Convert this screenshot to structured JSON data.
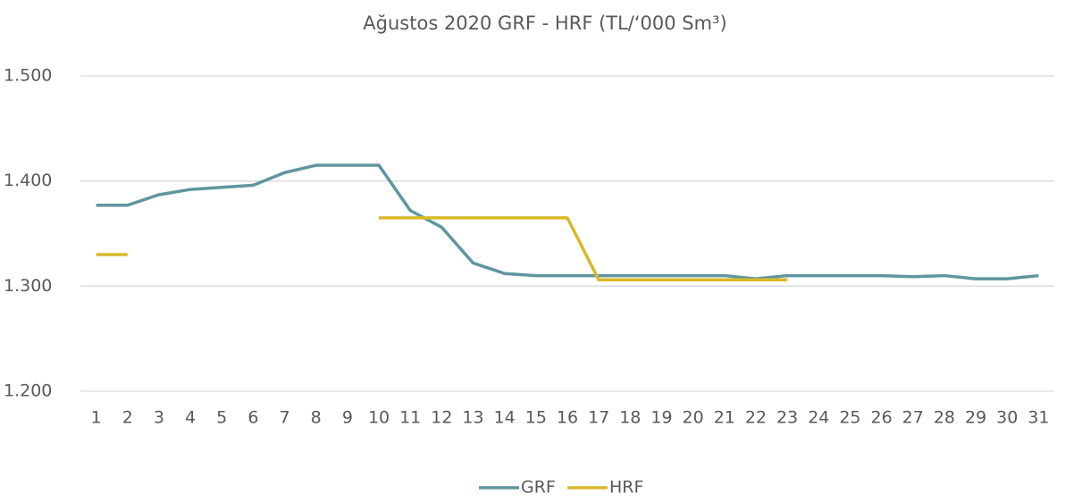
{
  "chart_data": {
    "type": "line",
    "title": "Ağustos 2020 GRF - HRF (TL/‘000 Sm³)",
    "categories": [
      "1",
      "2",
      "3",
      "4",
      "5",
      "6",
      "7",
      "8",
      "9",
      "10",
      "11",
      "12",
      "13",
      "14",
      "15",
      "16",
      "17",
      "18",
      "19",
      "20",
      "21",
      "22",
      "23",
      "24",
      "25",
      "26",
      "27",
      "28",
      "29",
      "30",
      "31"
    ],
    "series": [
      {
        "name": "GRF",
        "color": "#5f969f",
        "values": [
          1377,
          1377,
          1387,
          1392,
          1394,
          1396,
          1408,
          1415,
          1415,
          1415,
          1372,
          1356,
          1322,
          1312,
          1310,
          1310,
          1310,
          1310,
          1310,
          1310,
          1310,
          1307,
          1310,
          1310,
          1310,
          1310,
          1309,
          1310,
          1307,
          1307,
          1310
        ]
      },
      {
        "name": "HRF",
        "color": "#d9b92a",
        "values": [
          1330,
          1330,
          null,
          null,
          null,
          null,
          null,
          null,
          null,
          1365,
          1365,
          1365,
          1365,
          1365,
          1365,
          1365,
          1306,
          1306,
          1306,
          1306,
          1306,
          1306,
          1306,
          null,
          null,
          null,
          null,
          null,
          null,
          null,
          null
        ]
      }
    ],
    "ylim": [
      1200,
      1500
    ],
    "yticks": [
      {
        "value": 1200,
        "label": "1.200"
      },
      {
        "value": 1300,
        "label": "1.300"
      },
      {
        "value": 1400,
        "label": "1.400"
      },
      {
        "value": 1500,
        "label": "1.500"
      }
    ],
    "grid": true,
    "legend": "bottom"
  }
}
